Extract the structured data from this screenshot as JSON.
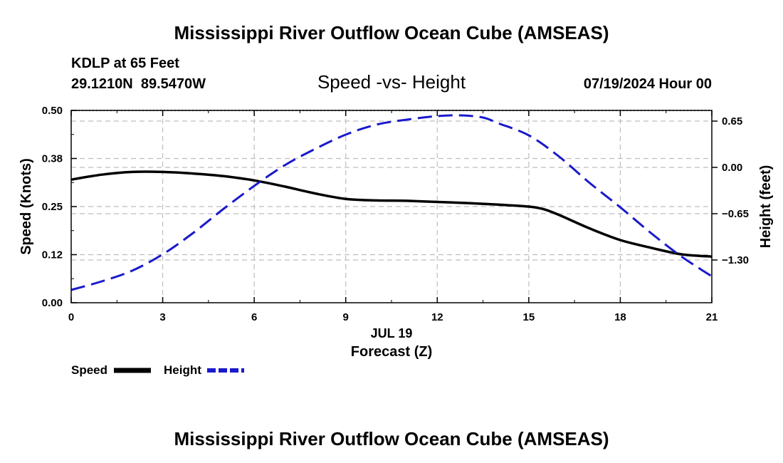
{
  "chart_data": {
    "type": "line",
    "title": "Mississippi River Outflow Ocean Cube (AMSEAS)",
    "footer_title": "Mississippi River Outflow Ocean Cube (AMSEAS)",
    "station": "KDLP at 65 Feet",
    "location": "29.1210N  89.5470W",
    "subtitle": "Speed -vs- Height",
    "datetime": "07/19/2024 Hour 00",
    "xlabel_date": "JUL 19",
    "xlabel": "Forecast (Z)",
    "ylabel_left": "Speed (Knots)",
    "ylabel_right": "Height (feet)",
    "xlim": [
      0,
      21
    ],
    "ylim_left": [
      0.0,
      0.5
    ],
    "ylim_right": [
      -1.9,
      0.8
    ],
    "x_ticks": [
      0,
      3,
      6,
      9,
      12,
      15,
      18,
      21
    ],
    "x_tick_labels": [
      "0",
      "3",
      "6",
      "9",
      "12",
      "15",
      "18",
      "21"
    ],
    "y_left_ticks": [
      0.0,
      0.125,
      0.25,
      0.375,
      0.5
    ],
    "y_left_tick_labels": [
      "0.00",
      "0.12",
      "0.25",
      "0.38",
      "0.50"
    ],
    "y_right_ticks": [
      0.65,
      0.0,
      -0.65,
      -1.3
    ],
    "y_right_tick_labels": [
      "0.65",
      "0.00",
      "−0.65",
      "−1.30"
    ],
    "legend": [
      {
        "name": "Speed",
        "color": "#000000",
        "dash": "solid"
      },
      {
        "name": "Height",
        "color": "#1a1acc",
        "dash": "dashed"
      }
    ],
    "series": [
      {
        "name": "Speed",
        "axis": "left",
        "color": "#000000",
        "x": [
          0,
          1,
          2,
          3,
          4,
          5,
          6,
          7,
          8,
          9,
          10,
          11,
          12,
          13,
          14,
          15,
          15.5,
          16,
          17,
          18,
          19,
          20,
          21
        ],
        "values": [
          0.32,
          0.333,
          0.34,
          0.34,
          0.336,
          0.329,
          0.318,
          0.302,
          0.284,
          0.27,
          0.266,
          0.265,
          0.262,
          0.259,
          0.255,
          0.25,
          0.243,
          0.228,
          0.193,
          0.163,
          0.143,
          0.126,
          0.12
        ]
      },
      {
        "name": "Height",
        "axis": "right",
        "color": "#1a1acc",
        "x": [
          0,
          1,
          2,
          3,
          4,
          5,
          6,
          7,
          8,
          9,
          10,
          11,
          12,
          12.8,
          13.5,
          14,
          15,
          16,
          17,
          18,
          19,
          20,
          21
        ],
        "values": [
          -1.72,
          -1.6,
          -1.45,
          -1.22,
          -0.92,
          -0.58,
          -0.26,
          0.03,
          0.26,
          0.46,
          0.6,
          0.67,
          0.72,
          0.73,
          0.7,
          0.62,
          0.45,
          0.15,
          -0.22,
          -0.56,
          -0.92,
          -1.25,
          -1.53
        ]
      }
    ]
  }
}
